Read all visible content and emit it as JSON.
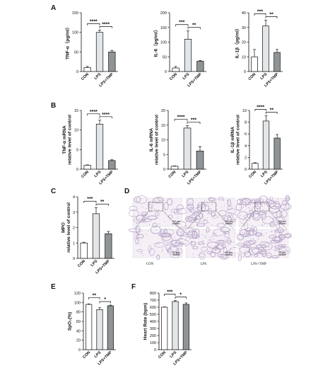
{
  "colors": {
    "CON": "#ffffff",
    "LPS": "#e3e6e8",
    "LPS+TMP": "#8f9496",
    "axis": "#111111",
    "tissue": "#b9a7c8"
  },
  "histology": {
    "label": "D",
    "scale_top": "100 μm",
    "scale_bottom": "50 μm",
    "columns": [
      "CON",
      "LPS",
      "LPS+TMP"
    ]
  },
  "chart_data": [
    {
      "type": "bar",
      "label": "A",
      "ylabel": "TNF-α（pg/ml）",
      "categories": [
        "CON",
        "LPS",
        "LPS+TMP"
      ],
      "values": [
        10,
        100,
        50
      ],
      "errors": [
        3,
        6,
        4
      ],
      "ylim": [
        0,
        150
      ],
      "yticks": [
        0,
        50,
        100,
        150
      ],
      "significance": [
        {
          "from": 0,
          "to": 1,
          "text": "****"
        },
        {
          "from": 1,
          "to": 2,
          "text": "****"
        }
      ]
    },
    {
      "type": "bar",
      "label": "",
      "ylabel": "IL-6（pg/ml）",
      "categories": [
        "CON",
        "LPS",
        "LPS+TMP"
      ],
      "values": [
        12,
        110,
        35
      ],
      "errors": [
        5,
        28,
        2
      ],
      "ylim": [
        0,
        200
      ],
      "yticks": [
        0,
        50,
        100,
        150,
        200
      ],
      "significance": [
        {
          "from": 0,
          "to": 1,
          "text": "***"
        },
        {
          "from": 1,
          "to": 2,
          "text": "**"
        }
      ]
    },
    {
      "type": "bar",
      "label": "",
      "ylabel": "IL-1β（pg/ml）",
      "categories": [
        "CON",
        "LPS",
        "LPS+TMP"
      ],
      "values": [
        10,
        31,
        13
      ],
      "errors": [
        5,
        4,
        2
      ],
      "ylim": [
        0,
        40
      ],
      "yticks": [
        0,
        10,
        20,
        30,
        40
      ],
      "significance": [
        {
          "from": 0,
          "to": 1,
          "text": "***"
        },
        {
          "from": 1,
          "to": 2,
          "text": "**"
        }
      ]
    },
    {
      "type": "bar",
      "label": "B",
      "ylabel": "TNF-α mRNA relative level of control",
      "categories": [
        "CON",
        "LPS",
        "LPS+TMP"
      ],
      "values": [
        1,
        11.5,
        2.2
      ],
      "errors": [
        0.1,
        1,
        0.2
      ],
      "ylim": [
        0,
        15
      ],
      "yticks": [
        0,
        5,
        10,
        15
      ],
      "significance": [
        {
          "from": 0,
          "to": 1,
          "text": "****"
        },
        {
          "from": 1,
          "to": 2,
          "text": "****"
        }
      ]
    },
    {
      "type": "bar",
      "label": "",
      "ylabel": "IL-6 mRNA relative level of control",
      "categories": [
        "CON",
        "LPS",
        "LPS+TMP"
      ],
      "values": [
        1,
        14,
        6.2
      ],
      "errors": [
        0.1,
        0.8,
        1.5
      ],
      "ylim": [
        0,
        20
      ],
      "yticks": [
        0,
        5,
        10,
        15,
        20
      ],
      "significance": [
        {
          "from": 0,
          "to": 1,
          "text": "****"
        },
        {
          "from": 1,
          "to": 2,
          "text": "***"
        }
      ]
    },
    {
      "type": "bar",
      "label": "",
      "ylabel": "IL-1β mRNA relative level of control",
      "categories": [
        "CON",
        "LPS",
        "LPS+TMP"
      ],
      "values": [
        1,
        8.2,
        5.3
      ],
      "errors": [
        0.1,
        0.9,
        0.6
      ],
      "ylim": [
        0,
        10
      ],
      "yticks": [
        0,
        2,
        4,
        6,
        8,
        10
      ],
      "significance": [
        {
          "from": 0,
          "to": 1,
          "text": "****"
        },
        {
          "from": 1,
          "to": 2,
          "text": "**"
        }
      ]
    },
    {
      "type": "bar",
      "label": "C",
      "ylabel": "MPO relative level of control",
      "categories": [
        "CON",
        "LPS",
        "LPS+TMP"
      ],
      "values": [
        1,
        2.9,
        1.6
      ],
      "errors": [
        0.05,
        0.4,
        0.15
      ],
      "ylim": [
        0,
        4
      ],
      "yticks": [
        0,
        1,
        2,
        3,
        4
      ],
      "significance": [
        {
          "from": 0,
          "to": 1,
          "text": "***"
        },
        {
          "from": 1,
          "to": 2,
          "text": "**"
        }
      ]
    },
    {
      "type": "bar",
      "label": "E",
      "ylabel": "SpO₂(%)",
      "categories": [
        "CON",
        "LPS",
        "LPS+TMP"
      ],
      "values": [
        96,
        85,
        93
      ],
      "errors": [
        1,
        4,
        1.5
      ],
      "ylim": [
        0,
        120
      ],
      "yticks": [
        0,
        20,
        40,
        60,
        80,
        100,
        120
      ],
      "significance": [
        {
          "from": 0,
          "to": 1,
          "text": "**"
        },
        {
          "from": 1,
          "to": 2,
          "text": "*"
        }
      ]
    },
    {
      "type": "bar",
      "label": "F",
      "ylabel": "Heart Rate (bpm)",
      "categories": [
        "CON",
        "LPS",
        "LPS+TMP"
      ],
      "values": [
        600,
        680,
        640
      ],
      "errors": [
        4,
        15,
        20
      ],
      "ylim": [
        0,
        800
      ],
      "yticks": [
        0,
        100,
        200,
        300,
        400,
        500,
        600,
        700,
        800
      ],
      "significance": [
        {
          "from": 0,
          "to": 1,
          "text": "***"
        },
        {
          "from": 1,
          "to": 2,
          "text": "*"
        }
      ]
    }
  ]
}
